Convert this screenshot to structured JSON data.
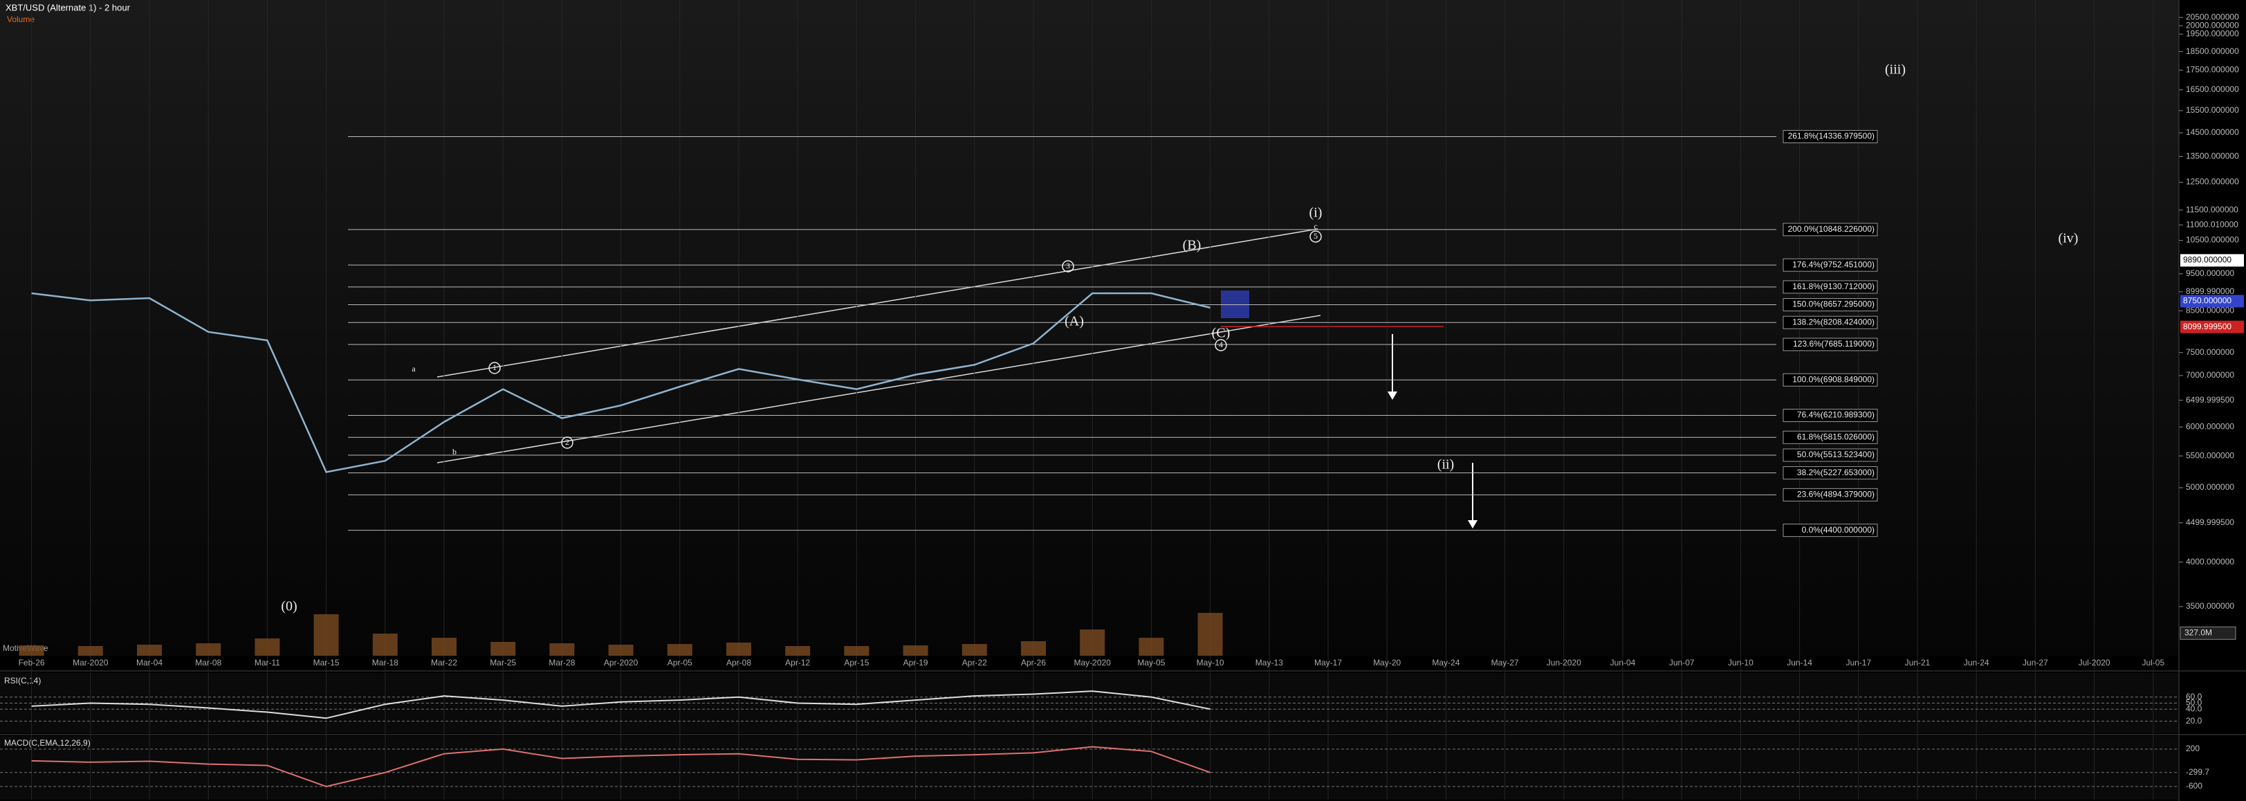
{
  "title": "XBT/USD (Alternate 1) - 2 hour",
  "subtitle": "Volume",
  "watermark": "MotiveWave",
  "chart_data": {
    "type": "line",
    "log_scale": true,
    "categories": [
      "Feb-26",
      "Mar-2020",
      "Mar-04",
      "Mar-08",
      "Mar-11",
      "Mar-15",
      "Mar-18",
      "Mar-22",
      "Mar-25",
      "Mar-28",
      "Apr-2020",
      "Apr-05",
      "Apr-08",
      "Apr-12",
      "Apr-15",
      "Apr-19",
      "Apr-22",
      "Apr-26",
      "May-2020",
      "May-05",
      "May-10",
      "May-13",
      "May-17",
      "May-20",
      "May-24",
      "May-27",
      "Jun-2020",
      "Jun-04",
      "Jun-07",
      "Jun-10",
      "Jun-14",
      "Jun-17",
      "Jun-21",
      "Jun-24",
      "Jun-27",
      "Jul-2020",
      "Jul-05"
    ],
    "series": [
      {
        "name": "XBT/USD",
        "color": "#8fb4d0",
        "values": [
          8960,
          8770,
          8830,
          7980,
          7780,
          5240,
          5420,
          6090,
          6720,
          6160,
          6400,
          6770,
          7140,
          6920,
          6720,
          7020,
          7230,
          7710,
          8960,
          8960,
          8580,
          null,
          null,
          null,
          null,
          null,
          null,
          null,
          null,
          null,
          null,
          null,
          null,
          null,
          null,
          null,
          null
        ]
      }
    ],
    "ylim": [
      3020,
      21600
    ],
    "yticks": [
      {
        "value": 20500,
        "label": "20500.000000"
      },
      {
        "value": 20000,
        "label": "20000.000000"
      },
      {
        "value": 19500,
        "label": "19500.000000"
      },
      {
        "value": 18500,
        "label": "18500.000000"
      },
      {
        "value": 17500,
        "label": "17500.000000"
      },
      {
        "value": 16500,
        "label": "16500.000000"
      },
      {
        "value": 15500,
        "label": "15500.000000"
      },
      {
        "value": 14500,
        "label": "14500.000000"
      },
      {
        "value": 13500,
        "label": "13500.000000"
      },
      {
        "value": 12500,
        "label": "12500.000000"
      },
      {
        "value": 11500,
        "label": "11500.000000"
      },
      {
        "value": 11000.01,
        "label": "11000.010000"
      },
      {
        "value": 10500,
        "label": "10500.000000"
      },
      {
        "value": 9500,
        "label": "9500.000000"
      },
      {
        "value": 8999.99,
        "label": "8999.990000"
      },
      {
        "value": 8500,
        "label": "8500.000000"
      },
      {
        "value": 7500,
        "label": "7500.000000"
      },
      {
        "value": 7000,
        "label": "7000.000000"
      },
      {
        "value": 6499.9995,
        "label": "6499.999500"
      },
      {
        "value": 6000,
        "label": "6000.000000"
      },
      {
        "value": 5500,
        "label": "5500.000000"
      },
      {
        "value": 5000,
        "label": "5000.000000"
      },
      {
        "value": 4499.9995,
        "label": "4499.999500"
      },
      {
        "value": 4000,
        "label": "4000.000000"
      },
      {
        "value": 3500,
        "label": "3500.000000"
      }
    ],
    "fib_levels": [
      {
        "value": 14336.9795,
        "label": "261.8%(14336.979500)"
      },
      {
        "value": 10848.226,
        "label": "200.0%(10848.226000)"
      },
      {
        "value": 9752.451,
        "label": "176.4%(9752.451000)"
      },
      {
        "value": 9130.712,
        "label": "161.8%(9130.712000)"
      },
      {
        "value": 8657.295,
        "label": "150.0%(8657.295000)"
      },
      {
        "value": 8208.424,
        "label": "138.2%(8208.424000)"
      },
      {
        "value": 7685.119,
        "label": "123.6%(7685.119000)"
      },
      {
        "value": 6908.849,
        "label": "100.0%(6908.849000)"
      },
      {
        "value": 6210.9893,
        "label": "76.4%(6210.989300)"
      },
      {
        "value": 5815.026,
        "label": "61.8%(5815.026000)"
      },
      {
        "value": 5513.5234,
        "label": "50.0%(5513.523400)"
      },
      {
        "value": 5227.653,
        "label": "38.2%(5227.653000)"
      },
      {
        "value": 4894.379,
        "label": "23.6%(4894.379000)"
      },
      {
        "value": 4400,
        "label": "0.0%(4400.000000)"
      }
    ],
    "price_markers": [
      {
        "value": 9890,
        "label": "9890.000000",
        "color": "#ffffff"
      },
      {
        "value": 8750,
        "label": "8750.000000",
        "color": "#3344cc"
      },
      {
        "value": 8099.9995,
        "label": "8099.999500",
        "color": "#cc2222"
      }
    ],
    "wave_labels": [
      "(iii)",
      "(iv)",
      "(i)",
      "c",
      "5",
      "(ii)",
      "(0)",
      "3",
      "(B)",
      "(A)",
      "(C)",
      "4",
      "1",
      "2",
      "a",
      "b"
    ],
    "volume": {
      "values": [
        150,
        140,
        160,
        180,
        250,
        600,
        320,
        260,
        200,
        180,
        160,
        170,
        190,
        140,
        140,
        150,
        170,
        210,
        380,
        260,
        620,
        null,
        null,
        null,
        null,
        null,
        null,
        null,
        null,
        null,
        null,
        null,
        null,
        null,
        null,
        null,
        null
      ],
      "ylim": [
        0,
        3000
      ],
      "marker": {
        "value": 327,
        "label": "327.0M"
      }
    },
    "rsi": {
      "title": "RSI(C,14)",
      "values": [
        45,
        50,
        48,
        42,
        35,
        25,
        48,
        62,
        55,
        45,
        52,
        55,
        60,
        50,
        48,
        55,
        62,
        65,
        70,
        60,
        40,
        null,
        null,
        null,
        null,
        null,
        null,
        null,
        null,
        null,
        null,
        null,
        null,
        null,
        null,
        null,
        null
      ],
      "ylim": [
        0,
        100
      ],
      "yticks": [
        {
          "value": 60,
          "label": "60.0"
        },
        {
          "value": 50,
          "label": "50.0"
        },
        {
          "value": 40,
          "label": "40.0"
        },
        {
          "value": 20,
          "label": "20.0"
        }
      ]
    },
    "macd": {
      "title": "MACD(C,EMA,12,26,9)",
      "values": [
        -50,
        -80,
        -60,
        -120,
        -150,
        -600,
        -300,
        100,
        200,
        0,
        50,
        80,
        100,
        -20,
        -30,
        50,
        80,
        120,
        250,
        150,
        -300,
        null,
        null,
        null,
        null,
        null,
        null,
        null,
        null,
        null,
        null,
        null,
        null,
        null,
        null,
        null,
        null
      ],
      "ylim": [
        -880,
        480
      ],
      "yticks": [
        200,
        -299.7,
        -600
      ]
    }
  }
}
